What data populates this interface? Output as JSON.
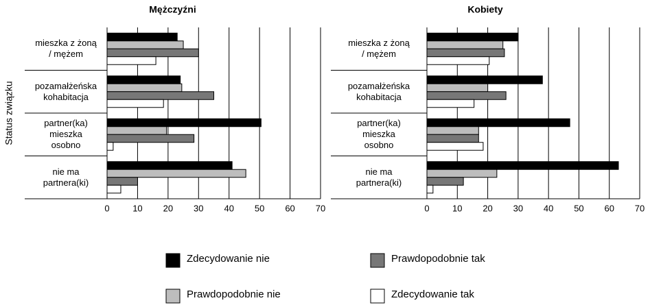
{
  "chart_data": [
    {
      "type": "hbar",
      "title": "Mężczyźni",
      "ylabel": "Status związku",
      "categories": [
        "mieszka z żoną\n/ mężem",
        "pozamałżeńska\nkohabitacja",
        "partner(ka)\nmieszka\nosobno",
        "nie ma\npartnera(ki)"
      ],
      "series": [
        {
          "name": "Zdecydowanie nie",
          "color": "#000000",
          "values": [
            23,
            24,
            50.5,
            41
          ]
        },
        {
          "name": "Prawdopodobnie nie",
          "color": "#bdbdbd",
          "values": [
            25,
            24.5,
            19.5,
            45.5
          ]
        },
        {
          "name": "Prawdopodobnie tak",
          "color": "#777777",
          "values": [
            30,
            35,
            28.5,
            10
          ]
        },
        {
          "name": "Zdecydowanie tak",
          "color": "#ffffff",
          "values": [
            16,
            18.5,
            2,
            4.5
          ]
        }
      ],
      "xlim": [
        0,
        70
      ],
      "xticks": [
        0,
        10,
        20,
        30,
        40,
        50,
        60,
        70
      ],
      "grid": true
    },
    {
      "type": "hbar",
      "title": "Kobiety",
      "categories": [
        "mieszka z żoną\n/ mężem",
        "pozamałżeńska\nkohabitacja",
        "partner(ka)\nmieszka\nosobno",
        "nie ma\npartnera(ki)"
      ],
      "series": [
        {
          "name": "Zdecydowanie nie",
          "color": "#000000",
          "values": [
            30,
            38,
            47,
            63
          ]
        },
        {
          "name": "Prawdopodobnie nie",
          "color": "#bdbdbd",
          "values": [
            25,
            20,
            17,
            23
          ]
        },
        {
          "name": "Prawdopodobnie tak",
          "color": "#777777",
          "values": [
            25.5,
            26,
            17,
            12
          ]
        },
        {
          "name": "Zdecydowanie tak",
          "color": "#ffffff",
          "values": [
            20.5,
            15.5,
            18.5,
            2
          ]
        }
      ],
      "xlim": [
        0,
        70
      ],
      "xticks": [
        0,
        10,
        20,
        30,
        40,
        50,
        60,
        70
      ],
      "grid": true
    }
  ]
}
